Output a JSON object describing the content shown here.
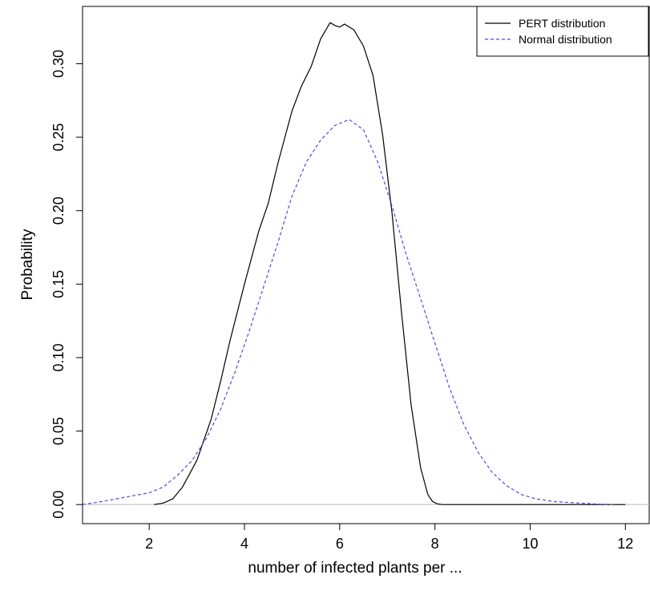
{
  "chart_data": {
    "type": "line",
    "title": "",
    "xlabel": "number of infected plants per ...",
    "ylabel": "Probability",
    "xlim": [
      0.6,
      12.5
    ],
    "ylim": [
      -0.013,
      0.339
    ],
    "x_ticks": [
      2,
      4,
      6,
      8,
      10,
      12
    ],
    "x_tick_labels": [
      "2",
      "4",
      "6",
      "8",
      "10",
      "12"
    ],
    "y_ticks": [
      0.0,
      0.05,
      0.1,
      0.15,
      0.2,
      0.25,
      0.3
    ],
    "y_tick_labels": [
      "0.00",
      "0.05",
      "0.10",
      "0.15",
      "0.20",
      "0.25",
      "0.30"
    ],
    "grid": false,
    "legend_position": "top-right",
    "baseline": {
      "y": 0,
      "color": "#bbbbbb"
    },
    "series": [
      {
        "name": "PERT distribution",
        "color": "#000000",
        "style": "solid",
        "x": [
          2.1,
          2.3,
          2.5,
          2.7,
          3.0,
          3.3,
          3.5,
          3.7,
          4.0,
          4.3,
          4.5,
          4.7,
          5.0,
          5.2,
          5.4,
          5.6,
          5.8,
          5.9,
          6.0,
          6.1,
          6.3,
          6.5,
          6.7,
          6.9,
          7.1,
          7.3,
          7.5,
          7.7,
          7.85,
          7.95,
          8.05,
          8.15,
          12.0
        ],
        "y": [
          0.0,
          0.001,
          0.004,
          0.012,
          0.03,
          0.058,
          0.084,
          0.112,
          0.15,
          0.186,
          0.205,
          0.232,
          0.268,
          0.285,
          0.298,
          0.317,
          0.328,
          0.326,
          0.325,
          0.327,
          0.323,
          0.312,
          0.292,
          0.252,
          0.198,
          0.13,
          0.068,
          0.025,
          0.007,
          0.002,
          0.0005,
          0.0,
          0.0
        ]
      },
      {
        "name": "Normal distribution",
        "color": "#4a4aee",
        "style": "dashed",
        "x": [
          0.6,
          1.0,
          1.5,
          2.0,
          2.3,
          2.6,
          2.9,
          3.2,
          3.5,
          3.8,
          4.1,
          4.4,
          4.7,
          5.0,
          5.3,
          5.6,
          5.9,
          6.2,
          6.5,
          6.8,
          7.1,
          7.4,
          7.7,
          8.0,
          8.3,
          8.6,
          8.9,
          9.2,
          9.5,
          9.8,
          10.1,
          10.5,
          11.0,
          11.5,
          11.8
        ],
        "y": [
          0.0,
          0.002,
          0.005,
          0.008,
          0.012,
          0.02,
          0.03,
          0.045,
          0.065,
          0.09,
          0.118,
          0.148,
          0.178,
          0.21,
          0.233,
          0.248,
          0.258,
          0.262,
          0.255,
          0.233,
          0.203,
          0.17,
          0.14,
          0.11,
          0.08,
          0.055,
          0.036,
          0.022,
          0.013,
          0.007,
          0.004,
          0.002,
          0.001,
          0.0002,
          0.0
        ]
      }
    ]
  }
}
